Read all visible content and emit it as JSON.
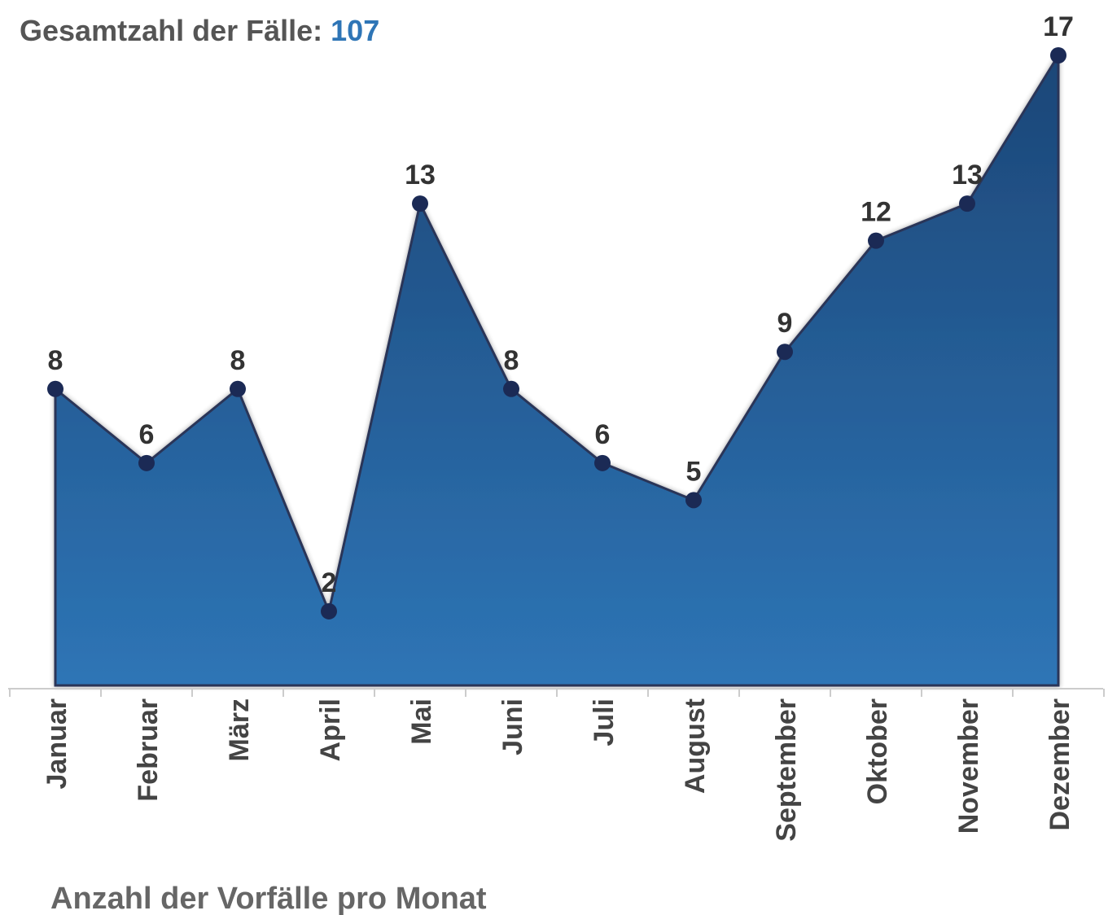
{
  "chart_data": {
    "type": "area",
    "title": "Gesamtzahl der Fälle:",
    "total": 107,
    "subtitle": "Anzahl der Vorfälle pro Monat",
    "categories": [
      "Januar",
      "Februar",
      "März",
      "April",
      "Mai",
      "Juni",
      "Juli",
      "August",
      "September",
      "Oktober",
      "November",
      "Dezember"
    ],
    "values": [
      8,
      6,
      8,
      2,
      13,
      8,
      6,
      5,
      9,
      12,
      13,
      17
    ],
    "ylim": [
      0,
      17
    ],
    "color": "#2e75b6",
    "total_color": "#2e75b6"
  }
}
